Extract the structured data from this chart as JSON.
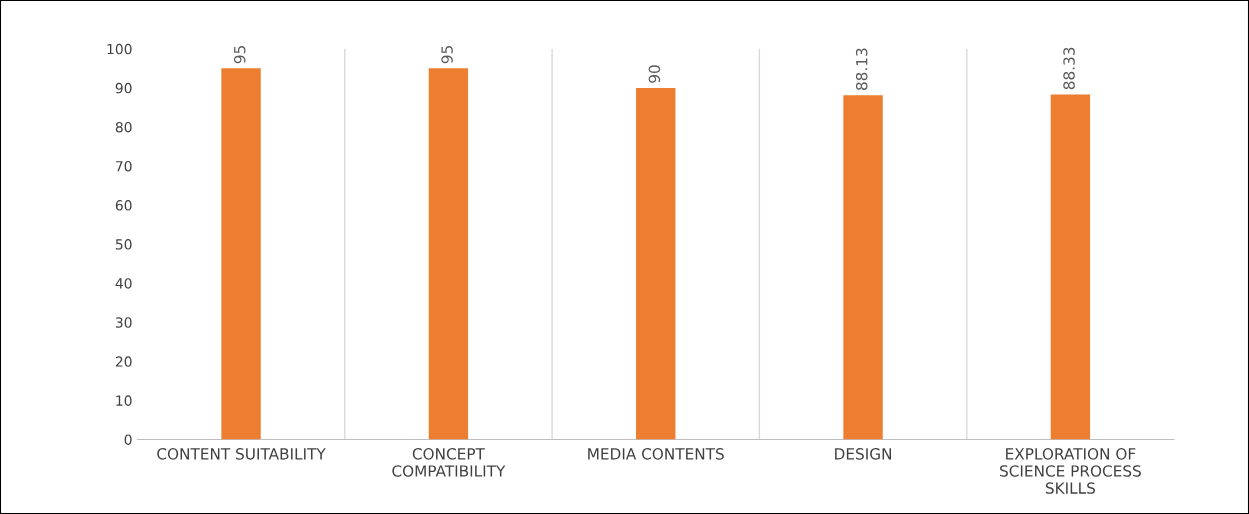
{
  "chart_data": {
    "type": "bar",
    "categories": [
      "CONTENT SUITABILITY",
      "CONCEPT\nCOMPATIBILITY",
      "MEDIA CONTENTS",
      "DESIGN",
      "EXPLORATION OF\nSCIENCE PROCESS\nSKILLS"
    ],
    "values": [
      95,
      95,
      90,
      88.13,
      88.33
    ],
    "color": "#ed7d31",
    "ylim": [
      0,
      100
    ],
    "yticks": [
      0,
      10,
      20,
      30,
      40,
      50,
      60,
      70,
      80,
      90,
      100
    ],
    "grid": "x",
    "data_labels": true
  }
}
